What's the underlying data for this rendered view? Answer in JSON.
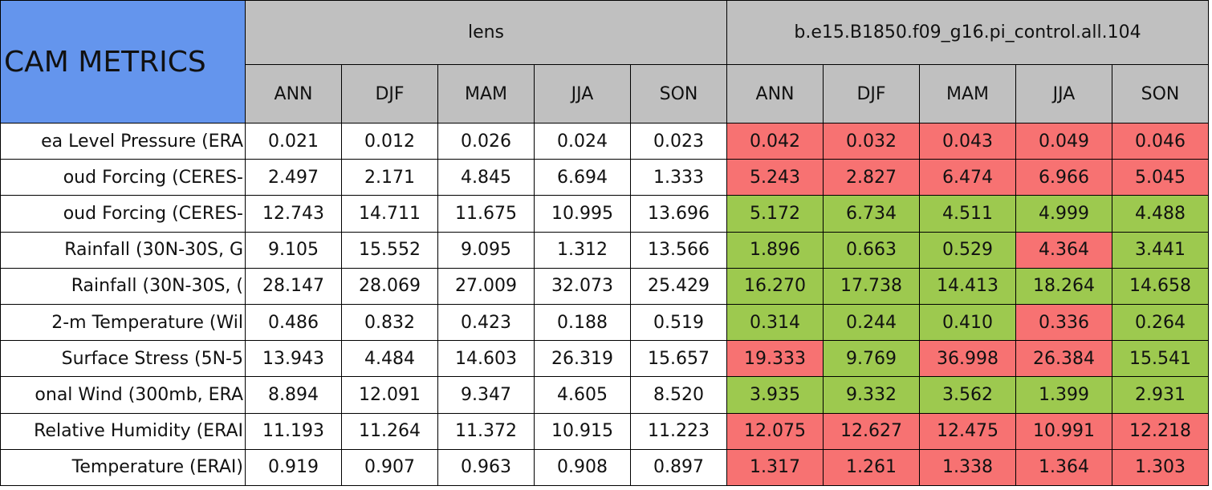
{
  "header": {
    "title": "CAM METRICS",
    "title_color": "#6495ed",
    "header_color": "#c0c0c0",
    "groups": [
      {
        "name": "lens",
        "seasons": [
          "ANN",
          "DJF",
          "MAM",
          "JJA",
          "SON"
        ]
      },
      {
        "name": "b.e15.B1850.f09_g16.pi_control.all.104",
        "seasons": [
          "ANN",
          "DJF",
          "MAM",
          "JJA",
          "SON"
        ]
      }
    ]
  },
  "rows": [
    {
      "label": "ea Level Pressure (ERA",
      "lens": [
        "0.021",
        "0.012",
        "0.026",
        "0.024",
        "0.023"
      ],
      "control": [
        "0.042",
        "0.032",
        "0.043",
        "0.049",
        "0.046"
      ],
      "control_colors": [
        "#f77272",
        "#f77272",
        "#f77272",
        "#f77272",
        "#f77272"
      ]
    },
    {
      "label": "oud Forcing (CERES-",
      "lens": [
        "2.497",
        "2.171",
        "4.845",
        "6.694",
        "1.333"
      ],
      "control": [
        "5.243",
        "2.827",
        "6.474",
        "6.966",
        "5.045"
      ],
      "control_colors": [
        "#f77272",
        "#f77272",
        "#f77272",
        "#f77272",
        "#f77272"
      ]
    },
    {
      "label": "oud Forcing (CERES-",
      "lens": [
        "12.743",
        "14.711",
        "11.675",
        "10.995",
        "13.696"
      ],
      "control": [
        "5.172",
        "6.734",
        "4.511",
        "4.999",
        "4.488"
      ],
      "control_colors": [
        "#9dc94f",
        "#9dc94f",
        "#9dc94f",
        "#9dc94f",
        "#9dc94f"
      ]
    },
    {
      "label": "Rainfall (30N-30S, G",
      "lens": [
        "9.105",
        "15.552",
        "9.095",
        "1.312",
        "13.566"
      ],
      "control": [
        "1.896",
        "0.663",
        "0.529",
        "4.364",
        "3.441"
      ],
      "control_colors": [
        "#9dc94f",
        "#9dc94f",
        "#9dc94f",
        "#f77272",
        "#9dc94f"
      ]
    },
    {
      "label": "Rainfall (30N-30S, (",
      "lens": [
        "28.147",
        "28.069",
        "27.009",
        "32.073",
        "25.429"
      ],
      "control": [
        "16.270",
        "17.738",
        "14.413",
        "18.264",
        "14.658"
      ],
      "control_colors": [
        "#9dc94f",
        "#9dc94f",
        "#9dc94f",
        "#9dc94f",
        "#9dc94f"
      ]
    },
    {
      "label": "2-m Temperature (Wil",
      "lens": [
        "0.486",
        "0.832",
        "0.423",
        "0.188",
        "0.519"
      ],
      "control": [
        "0.314",
        "0.244",
        "0.410",
        "0.336",
        "0.264"
      ],
      "control_colors": [
        "#9dc94f",
        "#9dc94f",
        "#9dc94f",
        "#f77272",
        "#9dc94f"
      ]
    },
    {
      "label": "Surface Stress (5N-5",
      "lens": [
        "13.943",
        "4.484",
        "14.603",
        "26.319",
        "15.657"
      ],
      "control": [
        "19.333",
        "9.769",
        "36.998",
        "26.384",
        "15.541"
      ],
      "control_colors": [
        "#f77272",
        "#9dc94f",
        "#f77272",
        "#f77272",
        "#9dc94f"
      ]
    },
    {
      "label": "onal Wind (300mb, ERA",
      "lens": [
        "8.894",
        "12.091",
        "9.347",
        "4.605",
        "8.520"
      ],
      "control": [
        "3.935",
        "9.332",
        "3.562",
        "1.399",
        "2.931"
      ],
      "control_colors": [
        "#9dc94f",
        "#9dc94f",
        "#9dc94f",
        "#9dc94f",
        "#9dc94f"
      ]
    },
    {
      "label": "Relative Humidity (ERAI",
      "lens": [
        "11.193",
        "11.264",
        "11.372",
        "10.915",
        "11.223"
      ],
      "control": [
        "12.075",
        "12.627",
        "12.475",
        "10.991",
        "12.218"
      ],
      "control_colors": [
        "#f77272",
        "#f77272",
        "#f77272",
        "#f77272",
        "#f77272"
      ]
    },
    {
      "label": "Temperature (ERAI)",
      "lens": [
        "0.919",
        "0.907",
        "0.963",
        "0.908",
        "0.897"
      ],
      "control": [
        "1.317",
        "1.261",
        "1.338",
        "1.364",
        "1.303"
      ],
      "control_colors": [
        "#f77272",
        "#f77272",
        "#f77272",
        "#f77272",
        "#f77272"
      ]
    }
  ]
}
